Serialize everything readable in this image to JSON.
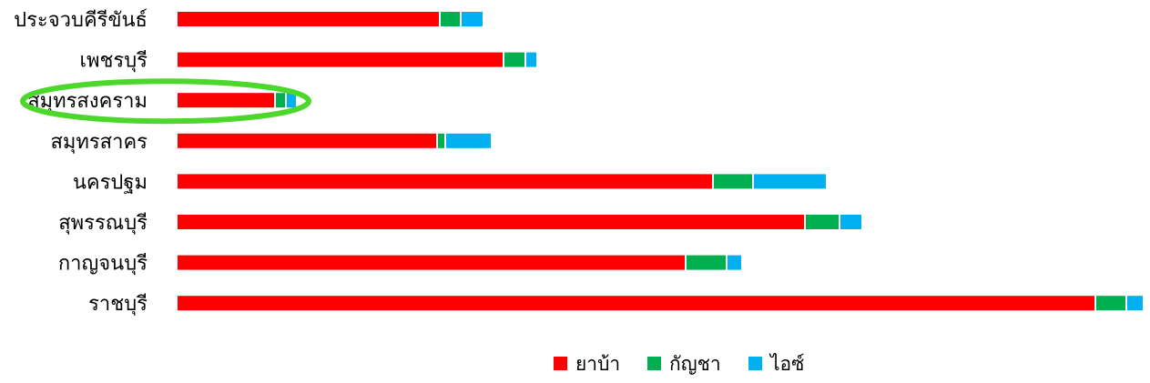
{
  "chart_data": {
    "type": "bar",
    "orientation": "horizontal",
    "stacked": true,
    "categories": [
      "ประจวบคีรีขันธ์",
      "เพชรบุรี",
      "สมุทรสงคราม",
      "สมุทรสาคร",
      "นครปฐม",
      "สุพรรณบุรี",
      "กาญจนบุรี",
      "ราชบุรี"
    ],
    "series": [
      {
        "name": "ยาบ้า",
        "color": "#ff0000",
        "values": [
          287,
          357,
          106,
          284,
          587,
          688,
          557,
          1007
        ]
      },
      {
        "name": "กัญชา",
        "color": "#00b050",
        "values": [
          21,
          22,
          10,
          7,
          42,
          36,
          43,
          32
        ]
      },
      {
        "name": "ไอซ์",
        "color": "#00b0f0",
        "values": [
          23,
          11,
          10,
          49,
          79,
          23,
          15,
          17
        ]
      }
    ],
    "legend": "bottom-center",
    "grid": false,
    "axis_visible": false,
    "highlighted_category": "สมุทรสงคราม",
    "highlight_color": "#4cd82a"
  }
}
